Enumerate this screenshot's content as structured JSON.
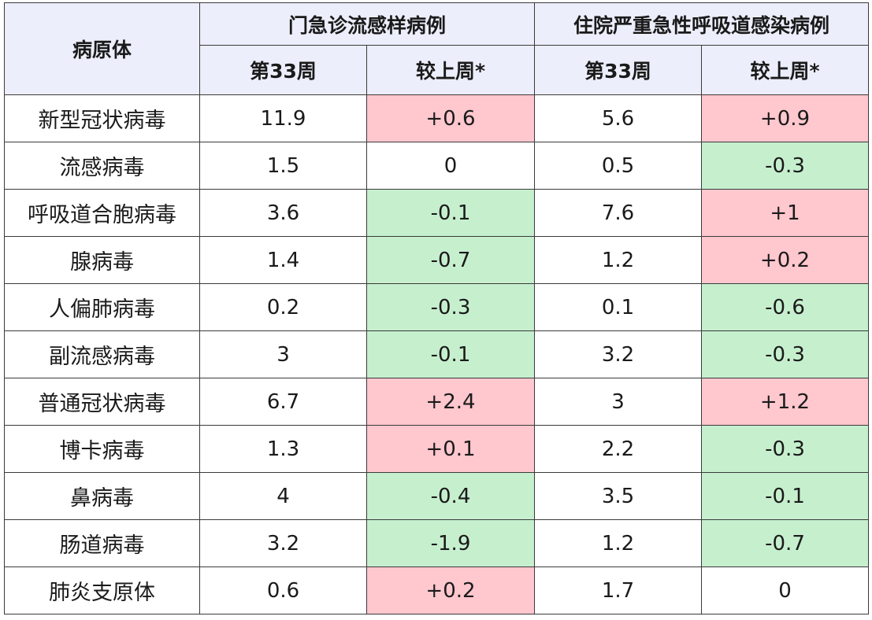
{
  "headers": {
    "pathogen": "病原体",
    "group1": "门急诊流感样病例",
    "group2": "住院严重急性呼吸道感染病例",
    "week": "第33周",
    "change": "较上周*"
  },
  "colors": {
    "increase_bg": "#ffc7ce",
    "increase_text": "#9c0006",
    "decrease_bg": "#c6efce",
    "decrease_text": "#006100",
    "header_bg": "#eceefb"
  },
  "rows": [
    {
      "name": "新型冠状病毒",
      "ili_week": "11.9",
      "ili_change": "+0.6",
      "ili_dir": "up",
      "sari_week": "5.6",
      "sari_change": "+0.9",
      "sari_dir": "up"
    },
    {
      "name": "流感病毒",
      "ili_week": "1.5",
      "ili_change": "0",
      "ili_dir": "flat",
      "sari_week": "0.5",
      "sari_change": "-0.3",
      "sari_dir": "down"
    },
    {
      "name": "呼吸道合胞病毒",
      "ili_week": "3.6",
      "ili_change": "-0.1",
      "ili_dir": "down",
      "sari_week": "7.6",
      "sari_change": "+1",
      "sari_dir": "up"
    },
    {
      "name": "腺病毒",
      "ili_week": "1.4",
      "ili_change": "-0.7",
      "ili_dir": "down",
      "sari_week": "1.2",
      "sari_change": "+0.2",
      "sari_dir": "up"
    },
    {
      "name": "人偏肺病毒",
      "ili_week": "0.2",
      "ili_change": "-0.3",
      "ili_dir": "down",
      "sari_week": "0.1",
      "sari_change": "-0.6",
      "sari_dir": "down"
    },
    {
      "name": "副流感病毒",
      "ili_week": "3",
      "ili_change": "-0.1",
      "ili_dir": "down",
      "sari_week": "3.2",
      "sari_change": "-0.3",
      "sari_dir": "down"
    },
    {
      "name": "普通冠状病毒",
      "ili_week": "6.7",
      "ili_change": "+2.4",
      "ili_dir": "up",
      "sari_week": "3",
      "sari_change": "+1.2",
      "sari_dir": "up"
    },
    {
      "name": "博卡病毒",
      "ili_week": "1.3",
      "ili_change": "+0.1",
      "ili_dir": "up",
      "sari_week": "2.2",
      "sari_change": "-0.3",
      "sari_dir": "down"
    },
    {
      "name": "鼻病毒",
      "ili_week": "4",
      "ili_change": "-0.4",
      "ili_dir": "down",
      "sari_week": "3.5",
      "sari_change": "-0.1",
      "sari_dir": "down"
    },
    {
      "name": "肠道病毒",
      "ili_week": "3.2",
      "ili_change": "-1.9",
      "ili_dir": "down",
      "sari_week": "1.2",
      "sari_change": "-0.7",
      "sari_dir": "down"
    },
    {
      "name": "肺炎支原体",
      "ili_week": "0.6",
      "ili_change": "+0.2",
      "ili_dir": "up",
      "sari_week": "1.7",
      "sari_change": "0",
      "sari_dir": "flat"
    }
  ]
}
